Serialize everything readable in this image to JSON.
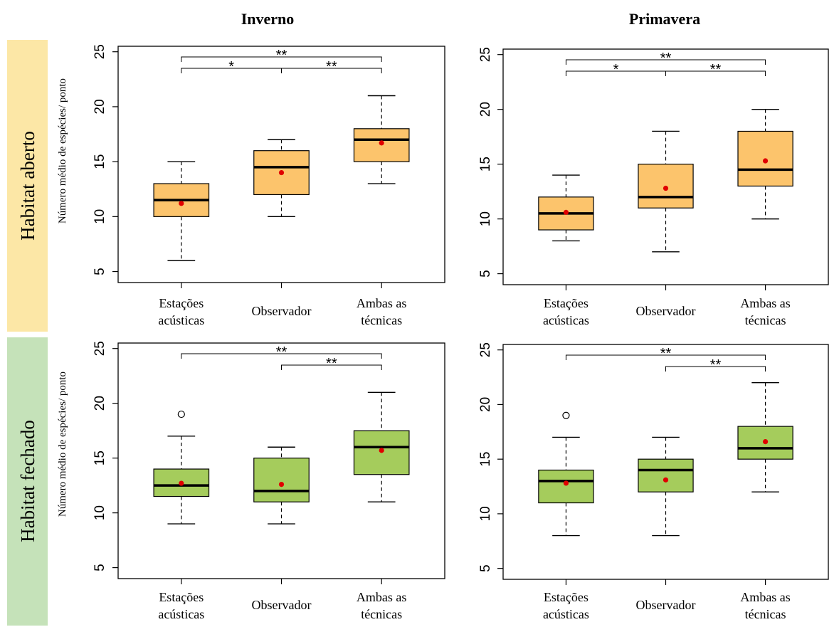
{
  "columns": [
    "Inverno",
    "Primavera"
  ],
  "rows": [
    {
      "label": "Habitat aberto",
      "color": "#fcc46c",
      "band_color": "#fce7a6"
    },
    {
      "label": "Habitat fechado",
      "color": "#a5cc5c",
      "band_color": "#c5e2b9"
    }
  ],
  "colors": {
    "mean_point": "#e00000",
    "median_line": "#000000"
  },
  "chart_data": [
    {
      "type": "boxplot",
      "column": "Inverno",
      "row": "Habitat aberto",
      "ylabel": "Número médio de espécies/ ponto",
      "ylim": [
        4,
        25.5
      ],
      "yticks": [
        5,
        10,
        15,
        20,
        25
      ],
      "categories": [
        [
          "Estações",
          "acústicas"
        ],
        [
          "Observador"
        ],
        [
          "Ambas as",
          "técnicas"
        ]
      ],
      "boxes": [
        {
          "min": 6,
          "q1": 10,
          "median": 11.5,
          "q3": 13,
          "max": 15,
          "mean": 11.2,
          "outliers": []
        },
        {
          "min": 10,
          "q1": 12,
          "median": 14.5,
          "q3": 16,
          "max": 17,
          "mean": 14,
          "outliers": []
        },
        {
          "min": 13,
          "q1": 15,
          "median": 17,
          "q3": 18,
          "max": 21,
          "mean": 16.7,
          "outliers": []
        }
      ],
      "significance": [
        {
          "from": 0,
          "to": 2,
          "label": "**",
          "level": 1
        },
        {
          "from": 0,
          "to": 1,
          "label": "*",
          "level": 0
        },
        {
          "from": 1,
          "to": 2,
          "label": "**",
          "level": 0
        }
      ]
    },
    {
      "type": "boxplot",
      "column": "Primavera",
      "row": "Habitat aberto",
      "ylabel": "",
      "ylim": [
        4,
        25.5
      ],
      "yticks": [
        5,
        10,
        15,
        20,
        25
      ],
      "categories": [
        [
          "Estações",
          "acústicas"
        ],
        [
          "Observador"
        ],
        [
          "Ambas as",
          "técnicas"
        ]
      ],
      "boxes": [
        {
          "min": 8,
          "q1": 9,
          "median": 10.5,
          "q3": 12,
          "max": 14,
          "mean": 10.6,
          "outliers": []
        },
        {
          "min": 7,
          "q1": 11,
          "median": 12,
          "q3": 15,
          "max": 18,
          "mean": 12.8,
          "outliers": []
        },
        {
          "min": 10,
          "q1": 13,
          "median": 14.5,
          "q3": 18,
          "max": 20,
          "mean": 15.3,
          "outliers": []
        }
      ],
      "significance": [
        {
          "from": 0,
          "to": 2,
          "label": "**",
          "level": 1
        },
        {
          "from": 0,
          "to": 1,
          "label": "*",
          "level": 0
        },
        {
          "from": 1,
          "to": 2,
          "label": "**",
          "level": 0
        }
      ]
    },
    {
      "type": "boxplot",
      "column": "Inverno",
      "row": "Habitat fechado",
      "ylabel": "Número médio de espécies/ ponto",
      "ylim": [
        4,
        25.5
      ],
      "yticks": [
        5,
        10,
        15,
        20,
        25
      ],
      "categories": [
        [
          "Estações",
          "acústicas"
        ],
        [
          "Observador"
        ],
        [
          "Ambas as",
          "técnicas"
        ]
      ],
      "boxes": [
        {
          "min": 9,
          "q1": 11.5,
          "median": 12.5,
          "q3": 14,
          "max": 17,
          "mean": 12.7,
          "outliers": [
            19
          ]
        },
        {
          "min": 9,
          "q1": 11,
          "median": 12,
          "q3": 15,
          "max": 16,
          "mean": 12.6,
          "outliers": []
        },
        {
          "min": 11,
          "q1": 13.5,
          "median": 16,
          "q3": 17.5,
          "max": 21,
          "mean": 15.7,
          "outliers": []
        }
      ],
      "significance": [
        {
          "from": 0,
          "to": 2,
          "label": "**",
          "level": 1
        },
        {
          "from": 1,
          "to": 2,
          "label": "**",
          "level": 0
        }
      ]
    },
    {
      "type": "boxplot",
      "column": "Primavera",
      "row": "Habitat fechado",
      "ylabel": "",
      "ylim": [
        4,
        25.5
      ],
      "yticks": [
        5,
        10,
        15,
        20,
        25
      ],
      "categories": [
        [
          "Estações",
          "acústicas"
        ],
        [
          "Observador"
        ],
        [
          "Ambas as",
          "técnicas"
        ]
      ],
      "boxes": [
        {
          "min": 8,
          "q1": 11,
          "median": 13,
          "q3": 14,
          "max": 17,
          "mean": 12.8,
          "outliers": [
            19
          ]
        },
        {
          "min": 8,
          "q1": 12,
          "median": 14,
          "q3": 15,
          "max": 17,
          "mean": 13.1,
          "outliers": []
        },
        {
          "min": 12,
          "q1": 15,
          "median": 16,
          "q3": 18,
          "max": 22,
          "mean": 16.6,
          "outliers": []
        }
      ],
      "significance": [
        {
          "from": 0,
          "to": 2,
          "label": "**",
          "level": 1
        },
        {
          "from": 1,
          "to": 2,
          "label": "**",
          "level": 0
        }
      ]
    }
  ]
}
